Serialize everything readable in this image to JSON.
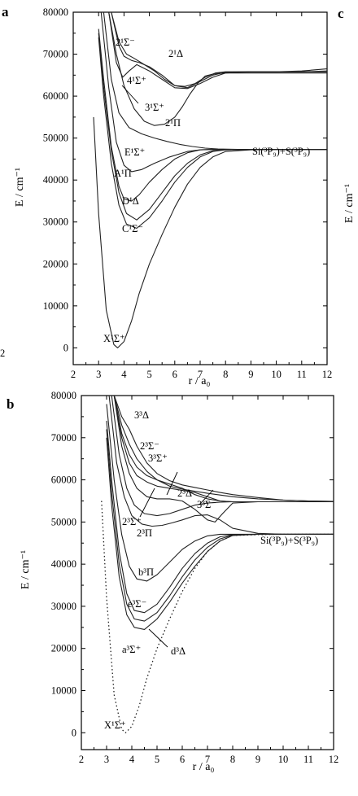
{
  "page": {
    "side_panel_letter": "c",
    "side_panel_ylabel": "E / cm⁻¹",
    "left_edge_fragment": "2"
  },
  "chart_data": [
    {
      "type": "line",
      "panel": "a",
      "xlabel": "r / a₀",
      "ylabel": "E / cm⁻¹",
      "xlim": [
        2,
        12
      ],
      "ylim": [
        -4000,
        80000
      ],
      "xticks": [
        "2",
        "3",
        "4",
        "5",
        "6",
        "7",
        "8",
        "9",
        "10",
        "11",
        "12"
      ],
      "yticks": [
        "0",
        "10000",
        "20000",
        "30000",
        "40000",
        "50000",
        "60000",
        "70000",
        "80000"
      ],
      "asymptote_label": "Si(³P₉)+S(³P₉)",
      "series": [
        {
          "name": "X¹Σ⁺",
          "dashed": false,
          "x": [
            2.8,
            3.0,
            3.3,
            3.6,
            3.75,
            4.0,
            4.3,
            4.6,
            5.0,
            5.5,
            6.0,
            6.5,
            7.0,
            7.5,
            8.0,
            9.0,
            10,
            11,
            12
          ],
          "y": [
            55000,
            32000,
            9000,
            800,
            0,
            1500,
            6500,
            13000,
            20000,
            27000,
            33500,
            39000,
            43000,
            45500,
            46800,
            47200,
            47300,
            47300,
            47300
          ]
        },
        {
          "name": "C¹Σ⁻",
          "dashed": false,
          "x": [
            3.0,
            3.2,
            3.5,
            3.8,
            4.1,
            4.5,
            5.0,
            5.5,
            6.0,
            6.5,
            7.0,
            7.5,
            8.0,
            9.0,
            10,
            11,
            12
          ],
          "y": [
            74000,
            60000,
            44000,
            34000,
            29500,
            28500,
            31000,
            35000,
            39500,
            43000,
            45500,
            46800,
            47200,
            47300,
            47300,
            47300,
            47300
          ]
        },
        {
          "name": "D¹Δ",
          "dashed": false,
          "x": [
            3.0,
            3.2,
            3.5,
            3.8,
            4.1,
            4.5,
            5.0,
            5.5,
            6.0,
            6.5,
            7.0,
            7.5,
            8.0,
            9.0,
            10,
            11,
            12
          ],
          "y": [
            75000,
            62000,
            47000,
            37000,
            32000,
            30500,
            33000,
            37000,
            41000,
            44000,
            46000,
            47000,
            47200,
            47300,
            47300,
            47300,
            47300
          ]
        },
        {
          "name": "A¹Π",
          "dashed": false,
          "x": [
            3.0,
            3.2,
            3.5,
            3.8,
            4.0,
            4.3,
            4.6,
            5.0,
            5.5,
            6.0,
            6.5,
            7.0,
            7.5,
            8.0,
            9.0,
            10,
            11,
            12
          ],
          "y": [
            76000,
            64000,
            48000,
            38500,
            35500,
            35000,
            36500,
            39500,
            42500,
            45000,
            46500,
            47200,
            47300,
            47300,
            47300,
            47300,
            47300,
            47300
          ]
        },
        {
          "name": "E¹Σ⁺",
          "dashed": false,
          "x": [
            3.1,
            3.4,
            3.7,
            4.0,
            4.3,
            4.7,
            5.2,
            5.8,
            6.5,
            7.0,
            7.5,
            8.0,
            9.0,
            10,
            11,
            12
          ],
          "y": [
            80000,
            62000,
            49000,
            43500,
            42000,
            42500,
            44000,
            45500,
            46800,
            47200,
            47300,
            47300,
            47300,
            47300,
            47300,
            47300
          ]
        },
        {
          "name": "2¹Π",
          "dashed": false,
          "x": [
            3.2,
            3.5,
            3.8,
            4.2,
            4.7,
            5.2,
            5.7,
            6.2,
            6.7,
            7.2,
            7.7,
            8.5,
            10,
            12
          ],
          "y": [
            80000,
            64000,
            56000,
            52500,
            51000,
            50000,
            49200,
            48500,
            48000,
            47600,
            47400,
            47300,
            47300,
            47300
          ]
        },
        {
          "name": "3¹Σ⁺",
          "dashed": false,
          "x": [
            3.4,
            3.7,
            4.0,
            4.4,
            4.8,
            5.2,
            5.6,
            6.0,
            6.3,
            6.6,
            6.9,
            7.2,
            7.6,
            8.0,
            9.0,
            10,
            11,
            12
          ],
          "y": [
            80000,
            70000,
            62500,
            57000,
            54000,
            53000,
            53300,
            55000,
            57500,
            60500,
            63000,
            64800,
            65400,
            65500,
            65500,
            65500,
            65500,
            65500
          ]
        },
        {
          "name": "4¹Σ⁺",
          "dashed": false,
          "x": [
            3.4,
            3.7,
            3.95,
            4.2,
            4.5,
            5.0,
            5.5,
            6.0,
            6.5,
            7.0,
            7.5,
            8.0,
            9.0,
            10,
            11,
            12
          ],
          "y": [
            80000,
            68000,
            64500,
            66000,
            67500,
            66000,
            64000,
            62000,
            61800,
            63000,
            64500,
            65500,
            65800,
            65800,
            65800,
            66000
          ]
        },
        {
          "name": "2¹Σ⁻",
          "dashed": false,
          "x": [
            3.5,
            3.8,
            4.0,
            4.3,
            4.6,
            5.0,
            5.5,
            6.0,
            6.5,
            7.0,
            7.5,
            8.0,
            9.0,
            10,
            11,
            12
          ],
          "y": [
            80000,
            72000,
            69500,
            68500,
            68000,
            67000,
            65000,
            62500,
            62000,
            63500,
            65000,
            65700,
            65800,
            65800,
            65800,
            65800
          ]
        },
        {
          "name": "2¹Δ",
          "dashed": false,
          "x": [
            3.5,
            3.8,
            4.1,
            4.4,
            4.8,
            5.2,
            5.6,
            6.0,
            6.4,
            6.8,
            7.2,
            7.6,
            8.0,
            9.0,
            10,
            11,
            12
          ],
          "y": [
            80000,
            73000,
            70000,
            69000,
            67500,
            66000,
            64000,
            62500,
            62300,
            63000,
            64500,
            65500,
            65800,
            65800,
            65800,
            66000,
            66500
          ]
        }
      ],
      "annotations": [
        "2¹Σ⁻",
        "2¹Δ",
        "4¹Σ⁺",
        "3¹Σ⁺",
        "2¹Π",
        "E¹Σ⁺",
        "A¹Π",
        "D¹Δ",
        "C¹Σ⁻",
        "X¹Σ⁺"
      ]
    },
    {
      "type": "line",
      "panel": "b",
      "xlabel": "r / a₀",
      "ylabel": "E / cm⁻¹",
      "xlim": [
        2,
        12
      ],
      "ylim": [
        -4000,
        80000
      ],
      "xticks": [
        "2",
        "3",
        "4",
        "5",
        "6",
        "7",
        "8",
        "9",
        "10",
        "11",
        "12"
      ],
      "yticks": [
        "0",
        "10000",
        "20000",
        "30000",
        "40000",
        "50000",
        "60000",
        "70000",
        "80000"
      ],
      "asymptote_label": "Si(³P₉)+S(³P₉)",
      "series": [
        {
          "name": "X¹Σ⁺",
          "dashed": true,
          "x": [
            2.8,
            3.0,
            3.3,
            3.6,
            3.75,
            4.0,
            4.3,
            4.6,
            5.0,
            5.5,
            6.0,
            6.5,
            7.0,
            7.5,
            8.0,
            9.0,
            10,
            11,
            12
          ],
          "y": [
            55000,
            32000,
            9000,
            800,
            0,
            1500,
            6500,
            13000,
            20000,
            27000,
            33500,
            39000,
            43000,
            45500,
            46800,
            47000,
            47100,
            47100,
            47100
          ]
        },
        {
          "name": "a³Σ⁺",
          "dashed": false,
          "x": [
            3.0,
            3.2,
            3.5,
            3.8,
            4.1,
            4.5,
            5.0,
            5.5,
            6.0,
            6.5,
            7.0,
            7.5,
            8.0,
            9.0,
            10,
            11,
            12
          ],
          "y": [
            70000,
            54000,
            37000,
            28000,
            25000,
            24500,
            27000,
            31000,
            35500,
            39500,
            43000,
            45500,
            46800,
            47100,
            47100,
            47100,
            47100
          ]
        },
        {
          "name": "d³Δ",
          "dashed": false,
          "x": [
            3.0,
            3.2,
            3.5,
            3.8,
            4.1,
            4.5,
            5.0,
            5.5,
            6.0,
            6.5,
            7.0,
            7.5,
            8.0,
            9.0,
            10,
            11,
            12
          ],
          "y": [
            72000,
            57000,
            40000,
            30500,
            27000,
            26500,
            28500,
            32500,
            37000,
            41000,
            44000,
            46000,
            46900,
            47100,
            47100,
            47100,
            47100
          ]
        },
        {
          "name": "e³Σ⁻",
          "dashed": false,
          "x": [
            3.0,
            3.2,
            3.5,
            3.8,
            4.1,
            4.5,
            5.0,
            5.5,
            6.0,
            6.5,
            7.0,
            7.5,
            8.0,
            9.0,
            10,
            11,
            12
          ],
          "y": [
            74000,
            60000,
            43000,
            33000,
            29000,
            28500,
            30500,
            34500,
            39000,
            42500,
            45000,
            46500,
            47000,
            47100,
            47100,
            47100,
            47100
          ]
        },
        {
          "name": "b³Π",
          "dashed": false,
          "x": [
            3.0,
            3.3,
            3.6,
            3.9,
            4.2,
            4.6,
            5.0,
            5.5,
            6.0,
            6.5,
            7.0,
            7.5,
            8.0,
            9.0,
            10,
            11,
            12
          ],
          "y": [
            78000,
            60000,
            47000,
            39500,
            36500,
            36000,
            37500,
            40500,
            43500,
            45500,
            46700,
            47100,
            47100,
            47100,
            47100,
            47100,
            47100
          ]
        },
        {
          "name": "2³Π",
          "dashed": false,
          "x": [
            3.1,
            3.4,
            3.7,
            4.0,
            4.4,
            4.8,
            5.2,
            5.6,
            6.0,
            6.5,
            7.0,
            7.5,
            8.0,
            9.0,
            10,
            11,
            12
          ],
          "y": [
            80000,
            64000,
            56000,
            51500,
            49500,
            49000,
            49200,
            49800,
            50500,
            51500,
            51700,
            50500,
            48500,
            47300,
            47100,
            47100,
            47100
          ]
        },
        {
          "name": "2³Σ⁺",
          "dashed": false,
          "x": [
            3.2,
            3.5,
            3.8,
            4.1,
            4.5,
            5.0,
            5.5,
            6.0,
            6.5,
            7.0,
            7.5,
            8.0,
            9.0,
            10,
            11,
            12
          ],
          "y": [
            80000,
            66000,
            58000,
            54000,
            52000,
            51500,
            52000,
            53000,
            54000,
            54500,
            54700,
            54800,
            54800,
            54800,
            54800,
            54800
          ]
        },
        {
          "name": "3³Σ⁺",
          "dashed": false,
          "x": [
            3.3,
            3.6,
            3.9,
            4.2,
            4.6,
            5.0,
            5.5,
            6.0,
            6.5,
            7.0,
            7.3,
            7.6,
            8.0,
            9.0,
            10,
            11,
            12
          ],
          "y": [
            80000,
            68000,
            61500,
            58000,
            56000,
            55500,
            55500,
            55000,
            53000,
            50500,
            50000,
            52000,
            54500,
            54800,
            54800,
            54800,
            54800
          ]
        },
        {
          "name": "2³Σ⁻",
          "dashed": false,
          "x": [
            3.3,
            3.6,
            3.9,
            4.2,
            4.6,
            5.0,
            5.5,
            6.0,
            6.5,
            7.0,
            7.5,
            8.0,
            9.0,
            10,
            11,
            12
          ],
          "y": [
            80000,
            70000,
            64000,
            61000,
            59500,
            58500,
            58000,
            57500,
            57000,
            56000,
            55000,
            54800,
            54800,
            54800,
            54800,
            54800
          ]
        },
        {
          "name": "2³Δ",
          "dashed": false,
          "x": [
            3.3,
            3.6,
            3.9,
            4.2,
            4.6,
            5.0,
            5.5,
            6.0,
            6.5,
            7.0,
            7.5,
            8.0,
            9.0,
            10,
            11,
            12
          ],
          "y": [
            80000,
            71000,
            66000,
            63000,
            61000,
            60000,
            59000,
            58000,
            56500,
            55500,
            55000,
            54800,
            54800,
            54800,
            54800,
            54800
          ]
        },
        {
          "name": "3³Σ⁻",
          "dashed": false,
          "x": [
            3.3,
            3.6,
            3.9,
            4.2,
            4.6,
            5.0,
            5.5,
            6.0,
            6.5,
            7.0,
            7.5,
            8.0,
            9.0,
            10,
            11,
            12
          ],
          "y": [
            80000,
            73000,
            68500,
            65000,
            62000,
            60000,
            58500,
            57800,
            57300,
            56800,
            56400,
            56000,
            55500,
            55200,
            55000,
            54900
          ]
        },
        {
          "name": "3³Δ",
          "dashed": false,
          "x": [
            3.3,
            3.6,
            3.9,
            4.2,
            4.6,
            5.0,
            5.5,
            6.0,
            6.5,
            7.0,
            7.5,
            8.0,
            9.0,
            10,
            11,
            12
          ],
          "y": [
            80000,
            75000,
            72000,
            68000,
            64000,
            61500,
            59800,
            58800,
            58200,
            57600,
            57000,
            56500,
            55800,
            55200,
            55000,
            54900
          ]
        }
      ],
      "annotations": [
        "3³Δ",
        "2³Σ⁻",
        "3³Σ⁺",
        "2³Δ",
        "3³Σ⁻",
        "2³Σ⁺",
        "2³Π",
        "b³Π",
        "e³Σ⁻",
        "a³Σ⁺",
        "d³Δ",
        "X¹Σ⁺"
      ]
    }
  ]
}
